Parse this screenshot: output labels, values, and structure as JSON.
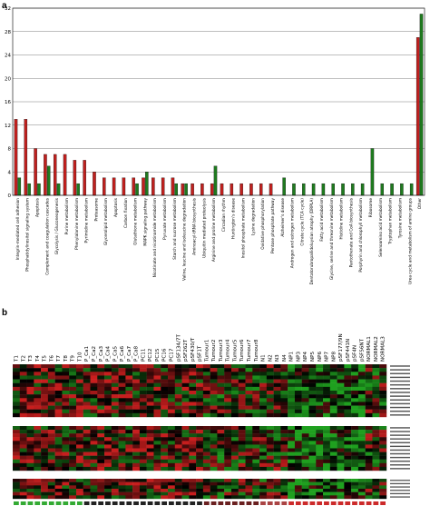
{
  "panel_a_label": "a",
  "panel_b_label": "b",
  "chart_data": [
    {
      "type": "bar",
      "title": "",
      "xlabel": "",
      "ylabel": "",
      "ylim": [
        0,
        32
      ],
      "yticks": [
        0,
        4,
        8,
        12,
        16,
        20,
        24,
        28,
        32
      ],
      "grid": true,
      "colors": [
        "#c0201e",
        "#1f7a1f"
      ],
      "categories": [
        "Integrin-mediated cell adhesion",
        "Phosphatidylinositol signaling system",
        "Apoptosis",
        "Complement and coagulation cascades",
        "Glycolysis / Gluconeogenesis",
        "Purine metabolism",
        "Phenylalanine metabolism",
        "Pyrimidine metabolism",
        "Proteasome",
        "Glycerolipid metabolism",
        "Apoptosis",
        "Carbon fixation",
        "Glutathione metabolism",
        "MAPK signaling pathway",
        "Nicotinate and nicotinamide metabolism",
        "Pyruvate metabolism",
        "Starch and sucrose metabolism",
        "Valine, leucine and isoleucine degradation",
        "Aminoacyl-tRNA biosynthesis",
        "Ubiquitin mediated proteolysis",
        "Arginine and proline metabolism",
        "Circadian rhythm",
        "Huntington's disease",
        "Inositol phosphate metabolism",
        "Lysine degradation",
        "Oxidative phosphorylation",
        "Pentose phosphate pathway",
        "Alzheimer's disease",
        "Androgen and estrogen metabolism",
        "Citrate cycle (TCA cycle)",
        "Dentatorubropallidoluysian atrophy (DRPLA)",
        "Fatty acid metabolism",
        "Glycine, serine and threonine metabolism",
        "Histidine metabolism",
        "Pantothenate and CoA biosynthesis",
        "Porphyrin and chlorophyll metabolism",
        "Ribosome",
        "Selenoamino acid metabolism",
        "Tryptophan metabolism",
        "Tyrosine metabolism",
        "Urea cycle and metabolism of amino groups",
        "Other"
      ],
      "series": [
        {
          "values": [
            13,
            13,
            8,
            7,
            7,
            7,
            6,
            6,
            4,
            3,
            3,
            3,
            3,
            3,
            3,
            3,
            3,
            2,
            2,
            2,
            2,
            2,
            2,
            2,
            2,
            2,
            2,
            0,
            0,
            0,
            0,
            0,
            0,
            0,
            0,
            0,
            0,
            0,
            0,
            0,
            0,
            27
          ]
        },
        {
          "values": [
            3,
            2,
            2,
            5,
            2,
            0,
            2,
            0,
            0,
            0,
            0,
            0,
            2,
            4,
            0,
            0,
            2,
            2,
            0,
            0,
            5,
            0,
            0,
            0,
            0,
            0,
            0,
            3,
            2,
            2,
            2,
            2,
            2,
            2,
            2,
            2,
            8,
            2,
            2,
            2,
            2,
            31
          ]
        }
      ]
    },
    {
      "type": "heatmap",
      "title": "",
      "columns": [
        "T1",
        "T2",
        "T3",
        "T4",
        "T5",
        "T6",
        "T7",
        "T8",
        "T9",
        "T10",
        "P_Ca1",
        "P_Ca2",
        "P_Ca3",
        "P_Ca4",
        "P_Ca5",
        "P_Ca6",
        "P_Ca7",
        "P_Ca8",
        "PC11",
        "PC12",
        "PC15",
        "PC16",
        "PC17",
        "pSF134/7T",
        "pSF262T",
        "pSF430/T",
        "pSF1T",
        "Tumour1",
        "Tumour2",
        "Tumour3",
        "Tumour4",
        "Tumour5",
        "Tumour6",
        "Tumour7",
        "Tumour8",
        "N1",
        "N2",
        "N3",
        "N4",
        "NP1",
        "NP3",
        "NP4",
        "NP5",
        "NP6",
        "NP7",
        "NP8",
        "pSF177/9N",
        "pSF441N",
        "pSF4N",
        "pSF56NT",
        "NORMAL1",
        "NORMAL2",
        "NORMAL3"
      ],
      "colors": {
        "low": "#1fa01f",
        "mid": "#000000",
        "high": "#c81e1e"
      },
      "blocks": [
        {
          "rows": 14
        },
        {
          "rows": 12
        },
        {
          "rows": 6
        }
      ]
    }
  ]
}
